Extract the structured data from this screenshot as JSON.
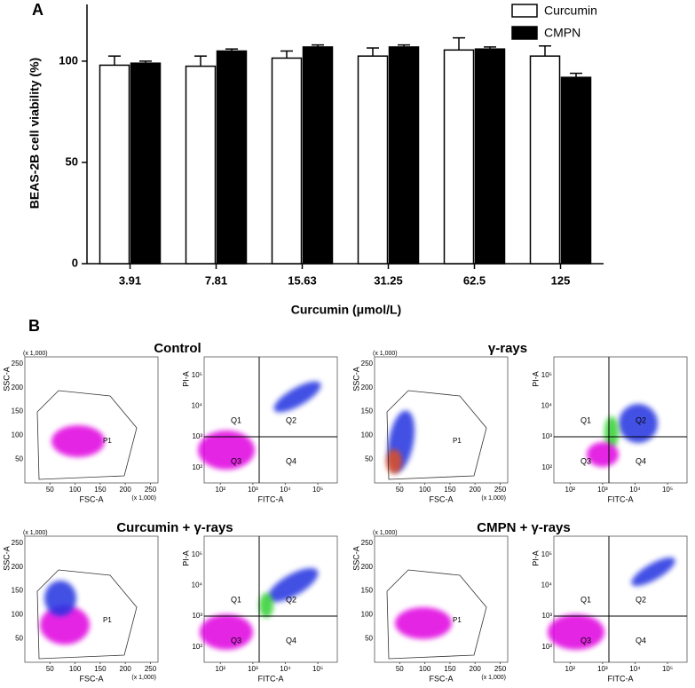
{
  "chart_data": {
    "type": "bar",
    "panel_label": "A",
    "xlabel": "Curcumin (μmol/L)",
    "ylabel": "BEAS-2B cell viability (%)",
    "categories": [
      "3.91",
      "7.81",
      "15.63",
      "31.25",
      "62.5",
      "125"
    ],
    "series": [
      {
        "name": "Curcumin",
        "color": "#ffffff",
        "values": [
          98,
          97.5,
          101.5,
          102.5,
          105.5,
          102.5
        ],
        "errors": [
          4.5,
          5,
          3.5,
          4,
          6,
          5
        ]
      },
      {
        "name": "CMPN",
        "color": "#000000",
        "values": [
          99,
          105,
          107,
          107,
          106,
          92
        ],
        "errors": [
          1,
          1,
          1,
          1,
          1,
          2
        ]
      }
    ],
    "ylim": [
      0,
      128
    ],
    "yticks": [
      0,
      50,
      100
    ],
    "grid": false,
    "legend": "top-right"
  },
  "panel_b": {
    "panel_label": "B",
    "titles": [
      "Control",
      "γ-rays",
      "Curcumin + γ-rays",
      "CMPN + γ-rays"
    ],
    "scatter": {
      "ylabel": "SSC-A",
      "xlabel": "FSC-A",
      "unit": "(x 1,000)",
      "gate": "P1",
      "ticks": [
        50,
        100,
        150,
        200,
        250
      ]
    },
    "quadrant": {
      "ylabel": "PI-A",
      "xlabel": "FITC-A",
      "quadrants": [
        "Q1",
        "Q2",
        "Q3",
        "Q4"
      ],
      "ticks": [
        {
          "value": 100,
          "label": "10²"
        },
        {
          "value": 1000,
          "label": "10³"
        },
        {
          "value": 10000,
          "label": "10⁴"
        },
        {
          "value": 100000,
          "label": "10⁵"
        }
      ]
    }
  }
}
